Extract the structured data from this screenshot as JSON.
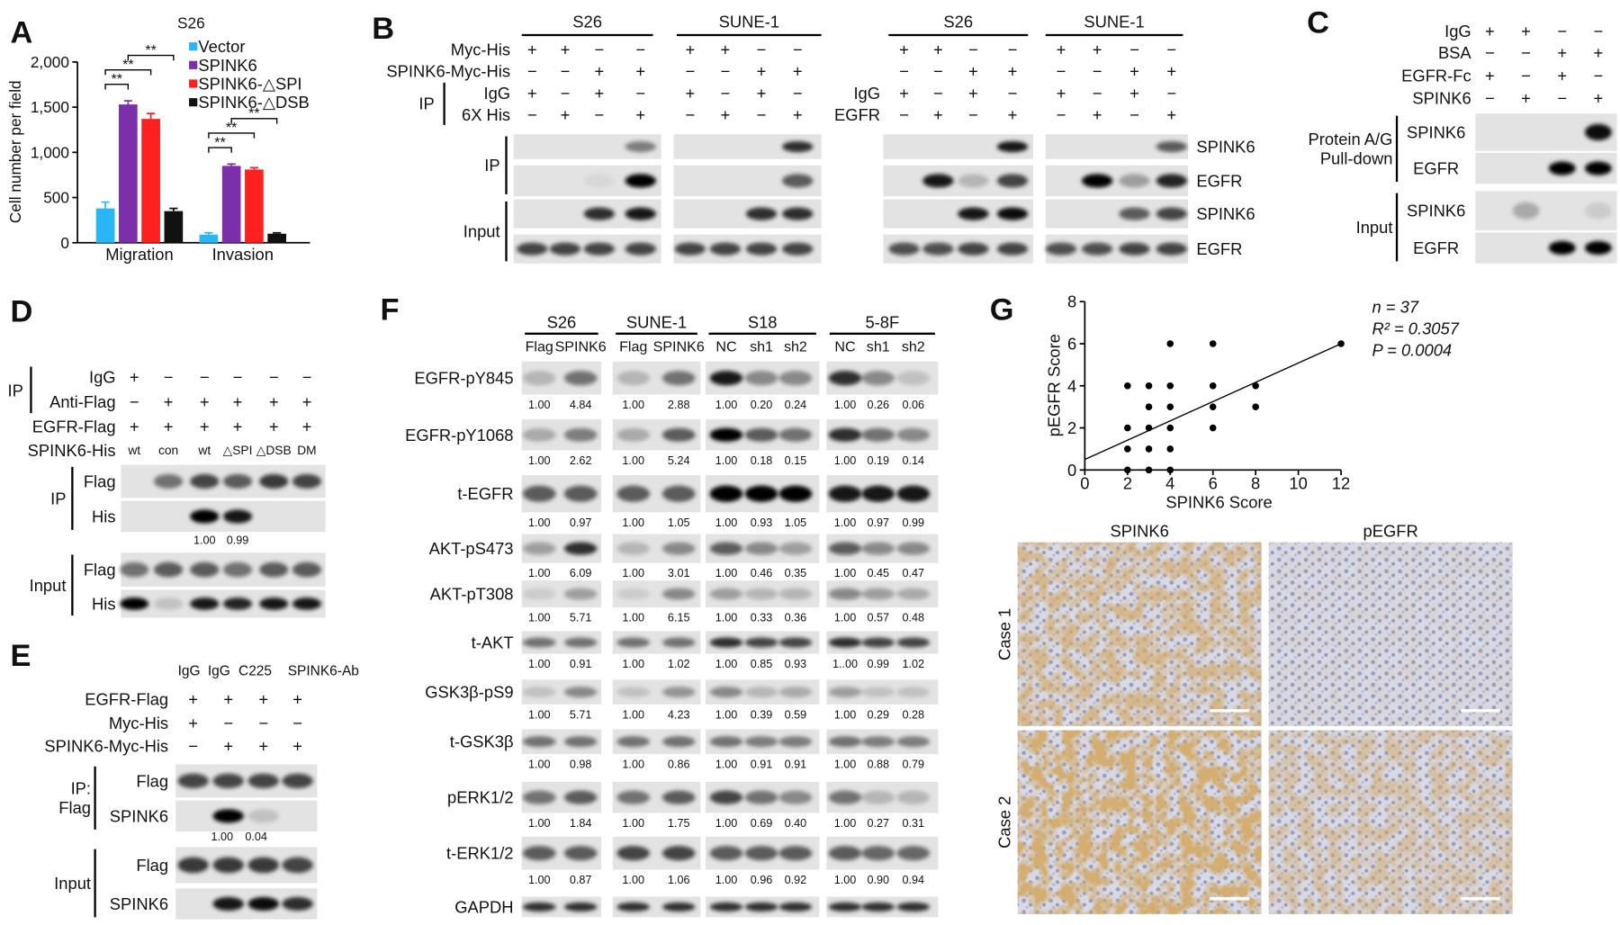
{
  "chart_data": [
    {
      "type": "bar",
      "panel_label": "A",
      "title": "S26",
      "ylabel": "Cell number per field",
      "categories": [
        "Migration",
        "Invasion"
      ],
      "series": [
        {
          "name": "Vector",
          "color": "#29b6f6",
          "values": [
            380,
            90
          ],
          "errors": [
            70,
            20
          ]
        },
        {
          "name": "SPINK6",
          "color": "#7b2fa8",
          "values": [
            1530,
            850
          ],
          "errors": [
            40,
            20
          ]
        },
        {
          "name": "SPINK6-△SPI",
          "color": "#ff2020",
          "values": [
            1370,
            810
          ],
          "errors": [
            60,
            20
          ]
        },
        {
          "name": "SPINK6-△DSB",
          "color": "#111111",
          "values": [
            350,
            100
          ],
          "errors": [
            30,
            10
          ]
        }
      ],
      "annotations": [
        {
          "label": "**",
          "category": 0,
          "series": [
            0,
            1
          ]
        },
        {
          "label": "**",
          "category": 0,
          "series": [
            0,
            2
          ]
        },
        {
          "label": "**",
          "category": 0,
          "series": [
            1,
            3
          ]
        },
        {
          "label": "**",
          "category": 1,
          "series": [
            0,
            1
          ]
        },
        {
          "label": "**",
          "category": 1,
          "series": [
            0,
            2
          ]
        },
        {
          "label": "**",
          "category": 1,
          "series": [
            1,
            3
          ]
        }
      ],
      "ylim": [
        0,
        2000
      ],
      "yticks": [
        0,
        500,
        {
          "value": 1000,
          "label": "1,000"
        },
        {
          "value": 1500,
          "label": "1,500"
        },
        {
          "value": 2000,
          "label": "2,000"
        }
      ]
    },
    {
      "type": "scatter",
      "panel_label": "G",
      "xlabel": "SPINK6 Score",
      "ylabel": "pEGFR Score",
      "x": [
        2,
        2,
        2,
        2,
        3,
        3,
        3,
        3,
        3,
        4,
        4,
        4,
        4,
        4,
        4,
        6,
        6,
        6,
        6,
        8,
        8,
        12
      ],
      "values": [
        0,
        1,
        2,
        4,
        0,
        1,
        2,
        3,
        4,
        0,
        1,
        2,
        3,
        4,
        6,
        2,
        3,
        4,
        6,
        3,
        4,
        6
      ],
      "color": "#000000",
      "trendline": {
        "x": [
          0,
          12
        ],
        "values": [
          0.5,
          6
        ]
      },
      "annotations": [
        "n = 37",
        "R² = 0.3057",
        "P = 0.0004"
      ],
      "xlim": [
        0,
        12
      ],
      "xticks": [
        0,
        2,
        4,
        6,
        8,
        10,
        12
      ],
      "ylim": [
        0,
        8
      ],
      "yticks": [
        0,
        2,
        4,
        6,
        8
      ]
    }
  ],
  "panels": {
    "B": {
      "label": "B",
      "groups": [
        "S26",
        "SUNE-1",
        "S26",
        "SUNE-1"
      ],
      "rows": [
        {
          "label": "Myc-His",
          "marks": [
            "+",
            "+",
            "−",
            "−",
            "+",
            "+",
            "−",
            "−",
            "+",
            "+",
            "−",
            "−",
            "+",
            "+",
            "−",
            "−"
          ]
        },
        {
          "label": "SPINK6-Myc-His",
          "marks": [
            "−",
            "−",
            "+",
            "+",
            "−",
            "−",
            "+",
            "+",
            "−",
            "−",
            "+",
            "+",
            "−",
            "−",
            "+",
            "+"
          ]
        },
        {
          "label": "IgG",
          "marks": [
            "+",
            "−",
            "+",
            "−",
            "+",
            "−",
            "+",
            "−"
          ]
        },
        {
          "label": "6X His",
          "marks": [
            "−",
            "+",
            "−",
            "+",
            "−",
            "+",
            "−",
            "+"
          ]
        }
      ],
      "ip": "IP",
      "rows_right": [
        {
          "label": "IgG",
          "marks": [
            "+",
            "−",
            "+",
            "−",
            "+",
            "−",
            "+",
            "−"
          ]
        },
        {
          "label": "EGFR",
          "marks": [
            "−",
            "+",
            "−",
            "+",
            "−",
            "+",
            "−",
            "+"
          ]
        }
      ],
      "blot_groups": [
        [
          "IP"
        ],
        [
          "Input"
        ]
      ],
      "blot_rows": [
        "SPINK6",
        "EGFR",
        "SPINK6",
        "EGFR"
      ]
    },
    "C": {
      "label": "C",
      "rows": [
        {
          "label": "IgG",
          "marks": [
            "+",
            "+",
            "−",
            "−"
          ]
        },
        {
          "label": "BSA",
          "marks": [
            "−",
            "−",
            "+",
            "+"
          ]
        },
        {
          "label": "EGFR-Fc",
          "marks": [
            "+",
            "−",
            "+",
            "−"
          ]
        },
        {
          "label": "SPINK6",
          "marks": [
            "−",
            "+",
            "−",
            "+"
          ]
        }
      ],
      "blot_groups": [
        [
          "Protein A/G",
          "Pull-down"
        ],
        [
          "Input"
        ]
      ],
      "blot_rows": [
        "SPINK6",
        "EGFR",
        "SPINK6",
        "EGFR"
      ]
    },
    "D": {
      "label": "D",
      "ip": "IP",
      "rows": [
        {
          "label": "IgG",
          "marks": [
            "+",
            "−",
            "−",
            "−",
            "−",
            "−"
          ]
        },
        {
          "label": "Anti-Flag",
          "marks": [
            "−",
            "+",
            "+",
            "+",
            "+",
            "+"
          ]
        },
        {
          "label": "EGFR-Flag",
          "marks": [
            "+",
            "+",
            "+",
            "+",
            "+",
            "+"
          ]
        },
        {
          "label": "SPINK6-His",
          "marks": [
            "wt",
            "con",
            "wt",
            "△SPI",
            "△DSB",
            "DM"
          ]
        }
      ],
      "blot_groups": [
        [
          "IP"
        ],
        [
          "Input"
        ]
      ],
      "blot_rows": [
        "Flag",
        "His",
        "Flag",
        "His"
      ],
      "quant": [
        "1.00",
        "0.99"
      ]
    },
    "E": {
      "label": "E",
      "treatments": [
        "IgG",
        "IgG",
        "C225",
        "SPINK6-Ab"
      ],
      "rows": [
        {
          "label": "EGFR-Flag",
          "marks": [
            "+",
            "+",
            "+",
            "+"
          ]
        },
        {
          "label": "Myc-His",
          "marks": [
            "+",
            "−",
            "−",
            "−"
          ]
        },
        {
          "label": "SPINK6-Myc-His",
          "marks": [
            "−",
            "+",
            "+",
            "+"
          ]
        }
      ],
      "blot_groups": [
        [
          "IP:",
          "Flag"
        ],
        [
          "Input"
        ]
      ],
      "blot_rows": [
        "Flag",
        "SPINK6",
        "Flag",
        "SPINK6"
      ],
      "quant": [
        "1.00",
        "0.04"
      ]
    },
    "F": {
      "label": "F",
      "groups": [
        {
          "name": "S26",
          "lanes": [
            "Flag",
            "SPINK6"
          ]
        },
        {
          "name": "SUNE-1",
          "lanes": [
            "Flag",
            "SPINK6"
          ]
        },
        {
          "name": "S18",
          "lanes": [
            "NC",
            "sh1",
            "sh2"
          ]
        },
        {
          "name": "5-8F",
          "lanes": [
            "NC",
            "sh1",
            "sh2"
          ]
        }
      ],
      "rows": [
        {
          "label": "EGFR-pY845",
          "quant": [
            "1.00",
            "4.84",
            "1.00",
            "2.88",
            "1.00",
            "0.20",
            "0.24",
            "1.00",
            "0.26",
            "0.06"
          ]
        },
        {
          "label": "EGFR-pY1068",
          "quant": [
            "1.00",
            "2.62",
            "1.00",
            "5.24",
            "1.00",
            "0.18",
            "0.15",
            "1.00",
            "0.19",
            "0.14"
          ]
        },
        {
          "label": "t-EGFR",
          "quant": [
            "1.00",
            "0.97",
            "1.00",
            "1.05",
            "1.00",
            "0.93",
            "1.05",
            "1.00",
            "0.97",
            "0.99"
          ]
        },
        {
          "label": "AKT-pS473",
          "quant": [
            "1.00",
            "6.09",
            "1.00",
            "3.01",
            "1.00",
            "0.46",
            "0.35",
            "1.00",
            "0.45",
            "0.47"
          ]
        },
        {
          "label": "AKT-pT308",
          "quant": [
            "1.00",
            "5.71",
            "1.00",
            "6.15",
            "1.00",
            "0.33",
            "0.36",
            "1.00",
            "0.57",
            "0.48"
          ]
        },
        {
          "label": "t-AKT",
          "quant": [
            "1.00",
            "0.91",
            "1.00",
            "1.02",
            "1.00",
            "0.85",
            "0.93",
            "1..00",
            "0.99",
            "1.02"
          ]
        },
        {
          "label": "GSK3β-pS9",
          "quant": [
            "1.00",
            "5.71",
            "1.00",
            "4.23",
            "1.00",
            "0.39",
            "0.59",
            "1.00",
            "0.29",
            "0.28"
          ]
        },
        {
          "label": "t-GSK3β",
          "quant": [
            "1.00",
            "0.98",
            "1.00",
            "0.86",
            "1.00",
            "0.91",
            "0.91",
            "1.00",
            "0.88",
            "0.79"
          ]
        },
        {
          "label": "pERK1/2",
          "quant": [
            "1.00",
            "1.84",
            "1.00",
            "1.75",
            "1.00",
            "0.69",
            "0.40",
            "1.00",
            "0.27",
            "0.31"
          ]
        },
        {
          "label": "t-ERK1/2",
          "quant": [
            "1.00",
            "0.87",
            "1.00",
            "1.06",
            "1.00",
            "0.96",
            "0.92",
            "1.00",
            "0.90",
            "0.94"
          ]
        },
        {
          "label": "GAPDH"
        }
      ]
    },
    "G": {
      "columns": [
        "SPINK6",
        "pEGFR"
      ],
      "rows": [
        "Case 1",
        "Case 2"
      ]
    }
  }
}
